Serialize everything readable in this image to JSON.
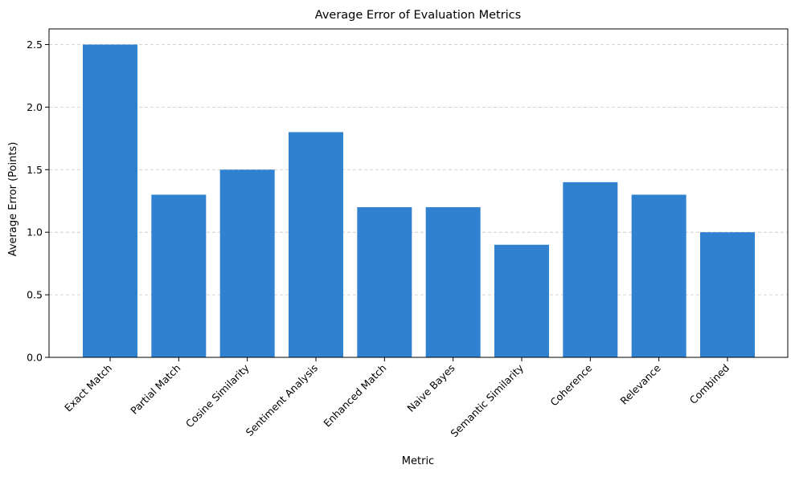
{
  "chart_data": {
    "type": "bar",
    "title": "Average Error of Evaluation Metrics",
    "xlabel": "Metric",
    "ylabel": "Average Error (Points)",
    "categories": [
      "Exact Match",
      "Partial Match",
      "Cosine Similarity",
      "Sentiment Analysis",
      "Enhanced Match",
      "Naive Bayes",
      "Semantic Similarity",
      "Coherence",
      "Relevance",
      "Combined"
    ],
    "values": [
      2.5,
      1.3,
      1.5,
      1.8,
      1.2,
      1.2,
      0.9,
      1.4,
      1.3,
      1.0
    ],
    "ylim": [
      0,
      2.625
    ],
    "yticks": [
      "0.0",
      "0.5",
      "1.0",
      "1.5",
      "2.0",
      "2.5"
    ],
    "bar_color": "#3081D0",
    "grid": "y-dashed"
  }
}
